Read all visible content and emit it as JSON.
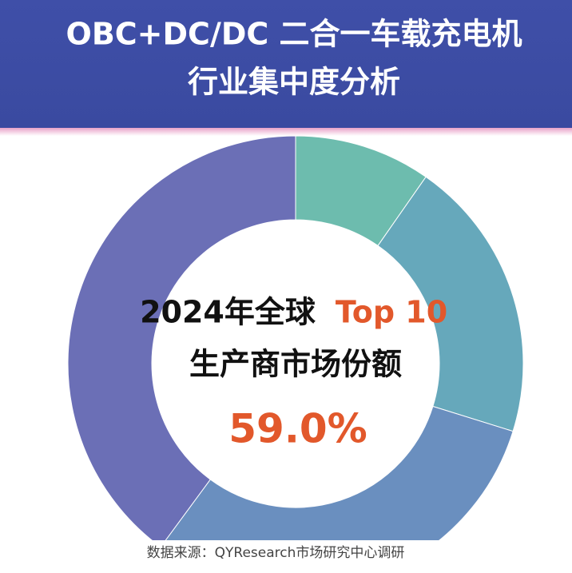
{
  "chart_data": {
    "type": "donut",
    "title": [
      "OBC+DC/DC 二合一车载充电机",
      "行业集中度分析"
    ],
    "center_text": {
      "line1": "2024年全球",
      "highlight": "Top 10",
      "line2": "生产商市场份额",
      "value_label": "59.0%"
    },
    "values": [
      9.7,
      20.1,
      30.3,
      39.9
    ],
    "colors": [
      "#6dbcae",
      "#66a8bb",
      "#6a8fbf",
      "#6b6fb6"
    ],
    "source": "数据来源：QYResearch市场研究中心调研"
  }
}
